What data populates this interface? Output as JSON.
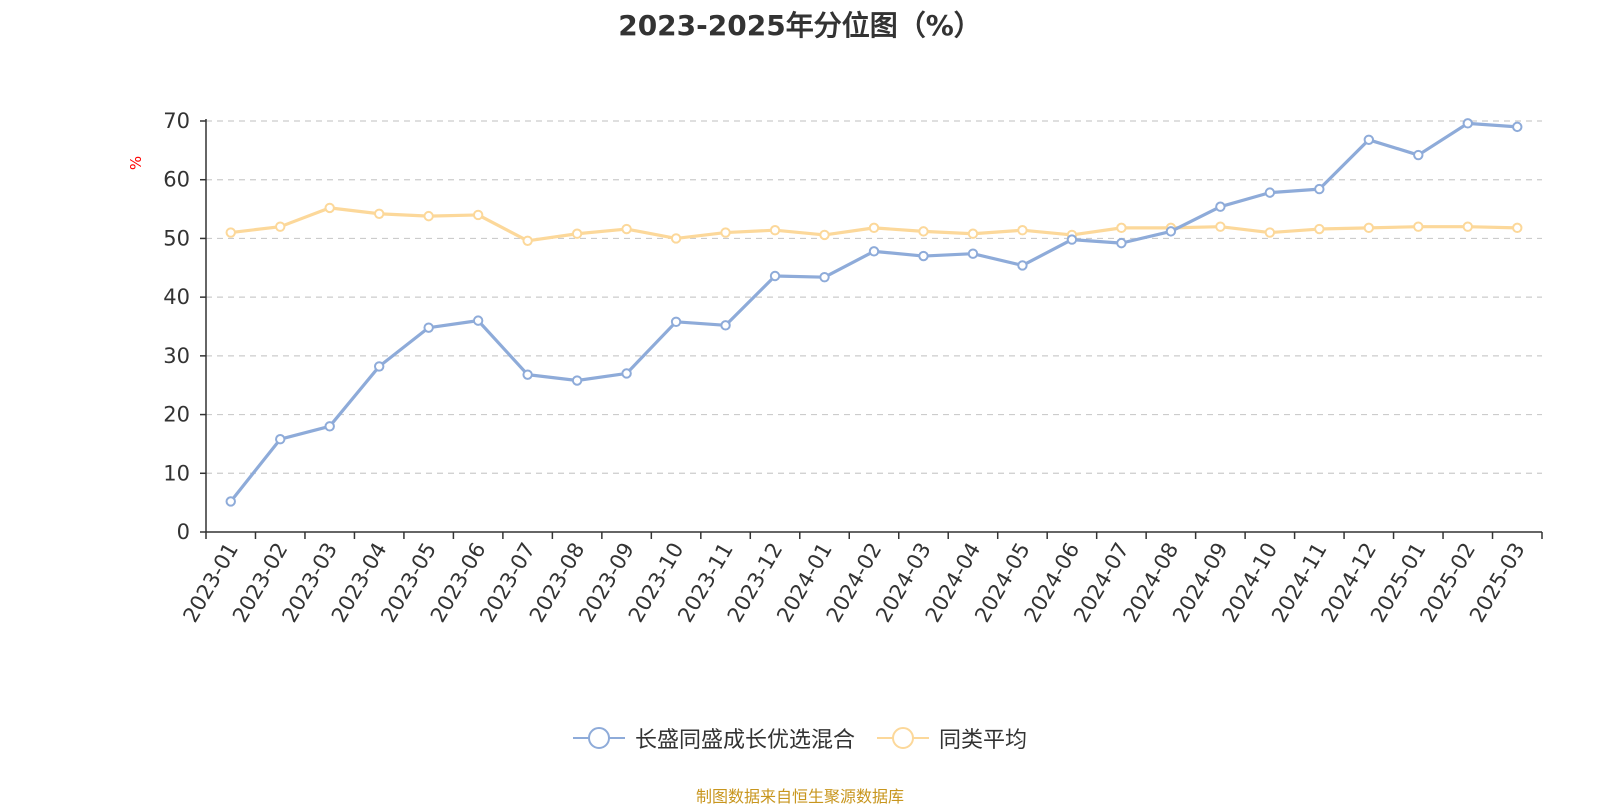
{
  "title": "2023-2025年分位图（%）",
  "source_note": "制图数据来自恒生聚源数据库",
  "colors": {
    "fund": "#8eabd9",
    "peer": "#fcd89a",
    "grid": "#cccccc",
    "axis": "#333333",
    "unit_label": "#ff0000",
    "source_note": "#c8961e"
  },
  "chart_data": {
    "type": "line",
    "title": "2023-2025年分位图（%）",
    "ylabel": "%",
    "ylim": [
      0,
      70
    ],
    "yticks": [
      0,
      10,
      20,
      30,
      40,
      50,
      60,
      70
    ],
    "grid": true,
    "legend_position": "bottom",
    "categories": [
      "2023-01",
      "2023-02",
      "2023-03",
      "2023-04",
      "2023-05",
      "2023-06",
      "2023-07",
      "2023-08",
      "2023-09",
      "2023-10",
      "2023-11",
      "2023-12",
      "2024-01",
      "2024-02",
      "2024-03",
      "2024-04",
      "2024-05",
      "2024-06",
      "2024-07",
      "2024-08",
      "2024-09",
      "2024-10",
      "2024-11",
      "2024-12",
      "2025-01",
      "2025-02",
      "2025-03"
    ],
    "series": [
      {
        "name": "长盛同盛成长优选混合",
        "color": "#8eabd9",
        "values": [
          5.2,
          15.8,
          18.0,
          28.2,
          34.8,
          36.0,
          26.8,
          25.8,
          27.0,
          35.8,
          35.2,
          43.6,
          43.4,
          47.8,
          47.0,
          47.4,
          45.4,
          49.8,
          49.2,
          51.2,
          55.4,
          57.8,
          58.4,
          66.8,
          64.2,
          69.6,
          69.0
        ]
      },
      {
        "name": "同类平均",
        "color": "#fcd89a",
        "values": [
          51.0,
          52.0,
          55.2,
          54.2,
          53.8,
          54.0,
          49.6,
          50.8,
          51.6,
          50.0,
          51.0,
          51.4,
          50.6,
          51.8,
          51.2,
          50.8,
          51.4,
          50.6,
          51.8,
          51.8,
          52.0,
          51.0,
          51.6,
          51.8,
          52.0,
          52.0,
          51.8
        ]
      }
    ]
  }
}
